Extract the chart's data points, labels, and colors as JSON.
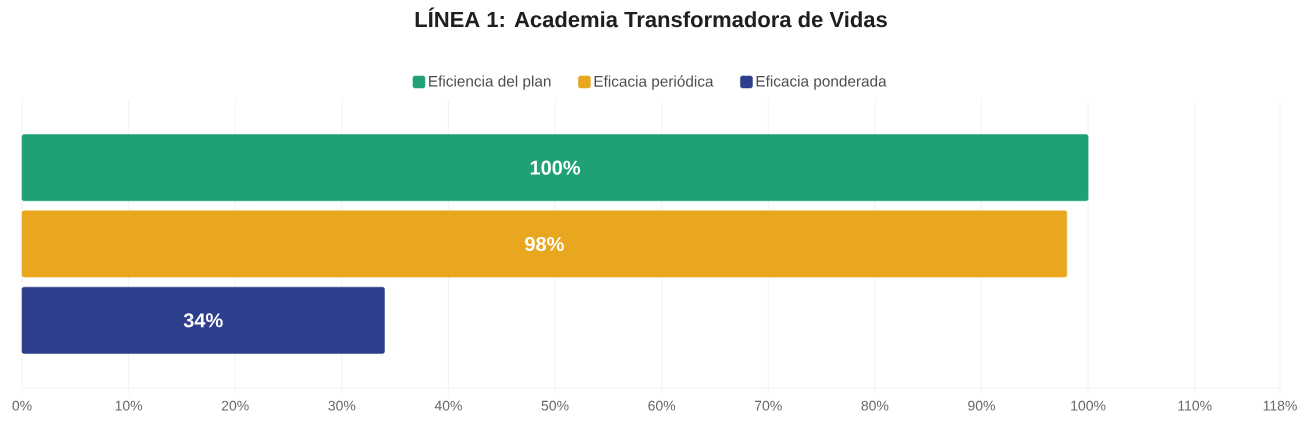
{
  "chart_data": {
    "type": "bar",
    "orientation": "horizontal",
    "title": "LÍNEA 1: Academia Transformadora de Vidas",
    "categories": [
      null
    ],
    "series": [
      {
        "name": "Eficiencia del plan",
        "color": "#1fa077",
        "values": [
          100
        ],
        "value_labels": [
          "100%"
        ]
      },
      {
        "name": "Eficacia periódica",
        "color": "#e8a71e",
        "values": [
          98
        ],
        "value_labels": [
          "98%"
        ]
      },
      {
        "name": "Eficacia ponderada",
        "color": "#2d3e8c",
        "values": [
          34
        ],
        "value_labels": [
          "34%"
        ]
      }
    ],
    "xlim": [
      0,
      118
    ],
    "xticks": [
      {
        "value": 0,
        "label": "0%"
      },
      {
        "value": 10,
        "label": "10%"
      },
      {
        "value": 20,
        "label": "20%"
      },
      {
        "value": 30,
        "label": "30%"
      },
      {
        "value": 40,
        "label": "40%"
      },
      {
        "value": 50,
        "label": "50%"
      },
      {
        "value": 60,
        "label": "60%"
      },
      {
        "value": 70,
        "label": "70%"
      },
      {
        "value": 80,
        "label": "80%"
      },
      {
        "value": 90,
        "label": "90%"
      },
      {
        "value": 100,
        "label": "100%"
      },
      {
        "value": 110,
        "label": "110%"
      },
      {
        "value": 118,
        "label": "118%"
      }
    ],
    "grid": "x",
    "legend": "top"
  }
}
